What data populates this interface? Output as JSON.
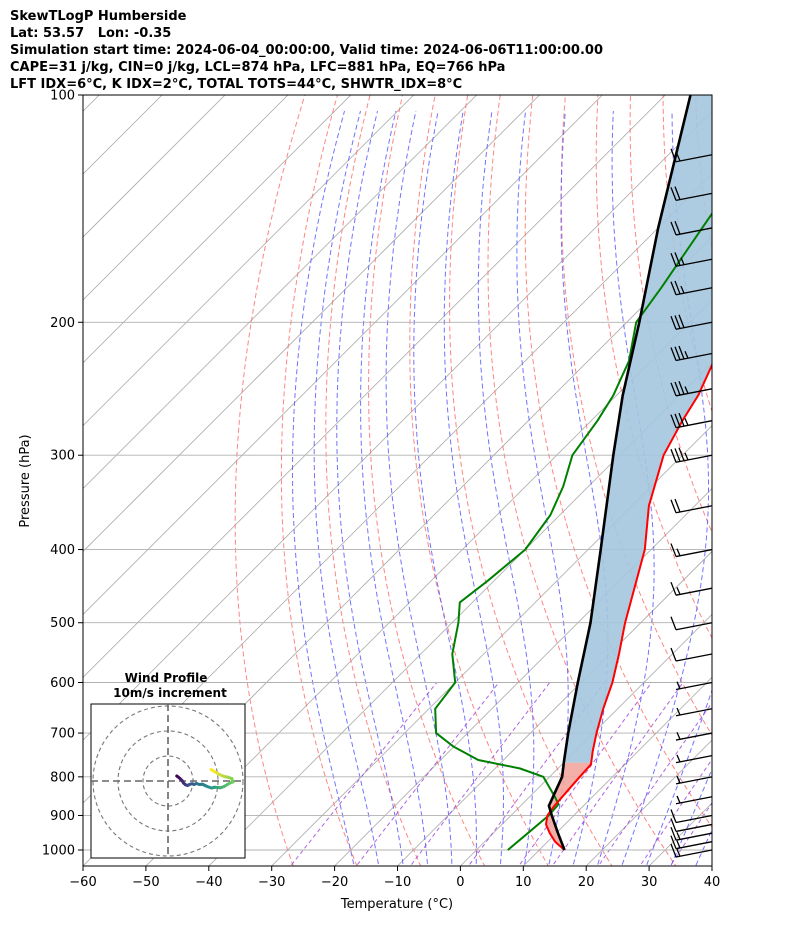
{
  "header": {
    "line1": "SkewTLogP Humberside",
    "line2": "Lat: 53.57   Lon: -0.35",
    "line3": "Simulation start time: 2024-06-04_00:00:00, Valid time: 2024-06-06T11:00:00.00",
    "line4": "CAPE=31 j/kg, CIN=0 j/kg, LCL=874 hPa, LFC=881 hPa, EQ=766 hPa",
    "line5": "LFT IDX=6°C, K IDX=2°C, TOTAL TOTS=44°C, SHWTR_IDX=8°C"
  },
  "chart_data": {
    "type": "line",
    "subtype": "skew-T log-P diagram",
    "xlabel": "Temperature (°C)",
    "ylabel": "Pressure (hPa)",
    "xlim": [
      -60,
      40
    ],
    "ylim": [
      1050,
      100
    ],
    "y_scale": "log",
    "grid": true,
    "x_ticks": [
      "−60",
      "−50",
      "−40",
      "−30",
      "−20",
      "−10",
      "0",
      "10",
      "20",
      "30",
      "40"
    ],
    "y_ticks": [
      "1000",
      "900",
      "800",
      "700",
      "600",
      "500",
      "400",
      "300",
      "200",
      "100"
    ],
    "colors": {
      "temperature": "#ff0000",
      "dewpoint": "#008000",
      "parcel": "#000000",
      "cape_fill": "#a4c7df",
      "cin_fill": "#f4a6a0",
      "dry_adiabat": "#ff6666",
      "moist_adiabat": "#5b5bff",
      "mixing_ratio": "#9a3fd8",
      "isotherm": "#aaaaaa",
      "hodograph_ring": "#777777"
    },
    "series": [
      {
        "role": "temperature",
        "points": [
          [
            1000,
            14
          ],
          [
            975,
            11.2
          ],
          [
            950,
            9
          ],
          [
            925,
            7
          ],
          [
            900,
            5.8
          ],
          [
            875,
            5.4
          ],
          [
            850,
            5.2
          ],
          [
            800,
            4.8
          ],
          [
            770,
            4.6
          ],
          [
            740,
            2.8
          ],
          [
            700,
            0.5
          ],
          [
            650,
            -2.3
          ],
          [
            600,
            -5
          ],
          [
            550,
            -8.5
          ],
          [
            500,
            -12.5
          ],
          [
            450,
            -16.5
          ],
          [
            400,
            -21
          ],
          [
            350,
            -27.3
          ],
          [
            300,
            -33
          ],
          [
            270,
            -35.5
          ],
          [
            250,
            -37
          ],
          [
            225,
            -40
          ],
          [
            200,
            -44
          ],
          [
            175,
            -48
          ],
          [
            150,
            -53
          ],
          [
            125,
            -58
          ],
          [
            100,
            -67
          ]
        ]
      },
      {
        "role": "dewpoint",
        "points": [
          [
            1000,
            5
          ],
          [
            950,
            5.5
          ],
          [
            900,
            6
          ],
          [
            870,
            5.8
          ],
          [
            850,
            4
          ],
          [
            800,
            -1
          ],
          [
            780,
            -6
          ],
          [
            760,
            -14
          ],
          [
            730,
            -20
          ],
          [
            700,
            -25
          ],
          [
            650,
            -29
          ],
          [
            600,
            -30
          ],
          [
            550,
            -35
          ],
          [
            500,
            -39
          ],
          [
            470,
            -42
          ],
          [
            440,
            -41
          ],
          [
            400,
            -40
          ],
          [
            360,
            -41.5
          ],
          [
            330,
            -44
          ],
          [
            300,
            -47.5
          ],
          [
            270,
            -49
          ],
          [
            250,
            -50.5
          ],
          [
            225,
            -53.5
          ],
          [
            200,
            -58.5
          ],
          [
            180,
            -60
          ],
          [
            150,
            -63
          ],
          [
            125,
            -66
          ],
          [
            100,
            -73
          ]
        ]
      },
      {
        "role": "parcel",
        "points": [
          [
            1000,
            14
          ],
          [
            950,
            10.3
          ],
          [
            900,
            6.5
          ],
          [
            874,
            4.5
          ],
          [
            800,
            2
          ],
          [
            766,
            0
          ],
          [
            700,
            -4
          ],
          [
            600,
            -10.5
          ],
          [
            500,
            -18
          ],
          [
            400,
            -28
          ],
          [
            300,
            -41
          ],
          [
            250,
            -49
          ],
          [
            200,
            -58
          ],
          [
            150,
            -70
          ],
          [
            100,
            -86
          ]
        ]
      }
    ],
    "wind_barbs": [
      {
        "p": 1000,
        "kt": 15
      },
      {
        "p": 975,
        "kt": 15
      },
      {
        "p": 950,
        "kt": 15
      },
      {
        "p": 925,
        "kt": 10
      },
      {
        "p": 900,
        "kt": 10
      },
      {
        "p": 850,
        "kt": 5
      },
      {
        "p": 800,
        "kt": 5
      },
      {
        "p": 750,
        "kt": 5
      },
      {
        "p": 700,
        "kt": 5
      },
      {
        "p": 650,
        "kt": 5
      },
      {
        "p": 600,
        "kt": 5
      },
      {
        "p": 550,
        "kt": 10
      },
      {
        "p": 500,
        "kt": 10
      },
      {
        "p": 450,
        "kt": 15
      },
      {
        "p": 400,
        "kt": 15
      },
      {
        "p": 350,
        "kt": 20
      },
      {
        "p": 300,
        "kt": 35
      },
      {
        "p": 270,
        "kt": 35
      },
      {
        "p": 245,
        "kt": 35
      },
      {
        "p": 220,
        "kt": 35
      },
      {
        "p": 200,
        "kt": 30
      },
      {
        "p": 180,
        "kt": 25
      },
      {
        "p": 165,
        "kt": 25
      },
      {
        "p": 150,
        "kt": 20
      },
      {
        "p": 135,
        "kt": 20
      },
      {
        "p": 120,
        "kt": 15
      }
    ],
    "hodograph": {
      "title_line1": "Wind Profile",
      "title_line2": "10m/s increment",
      "rings_ms": [
        10,
        20,
        30
      ],
      "trace_uv": [
        [
          3.5,
          2
        ],
        [
          4.2,
          1.5
        ],
        [
          5,
          0.8
        ],
        [
          5.6,
          0.2
        ],
        [
          6.2,
          -0.8
        ],
        [
          7,
          -1.5
        ],
        [
          7.8,
          -1.8
        ],
        [
          8.6,
          -1.4
        ],
        [
          9.4,
          -1.1
        ],
        [
          10.4,
          -1.4
        ],
        [
          11.4,
          -1.0
        ],
        [
          12.6,
          -1.4
        ],
        [
          13.8,
          -1.3
        ],
        [
          15,
          -1.9
        ],
        [
          16.2,
          -2.4
        ],
        [
          17.4,
          -2.8
        ],
        [
          18.6,
          -2.5
        ],
        [
          19.8,
          -2.6
        ],
        [
          21,
          -2.7
        ],
        [
          22.4,
          -2.2
        ],
        [
          23.6,
          -1.5
        ],
        [
          24.8,
          -0.8
        ],
        [
          26,
          -0.4
        ],
        [
          25.5,
          1.0
        ],
        [
          24,
          1.5
        ],
        [
          22.5,
          1.8
        ],
        [
          21,
          2.4
        ],
        [
          19.6,
          3.2
        ],
        [
          18.4,
          3.9
        ],
        [
          17.2,
          4.6
        ]
      ],
      "colormap": [
        "#440154",
        "#3b528b",
        "#21918c",
        "#5ec962",
        "#fde725"
      ]
    }
  }
}
